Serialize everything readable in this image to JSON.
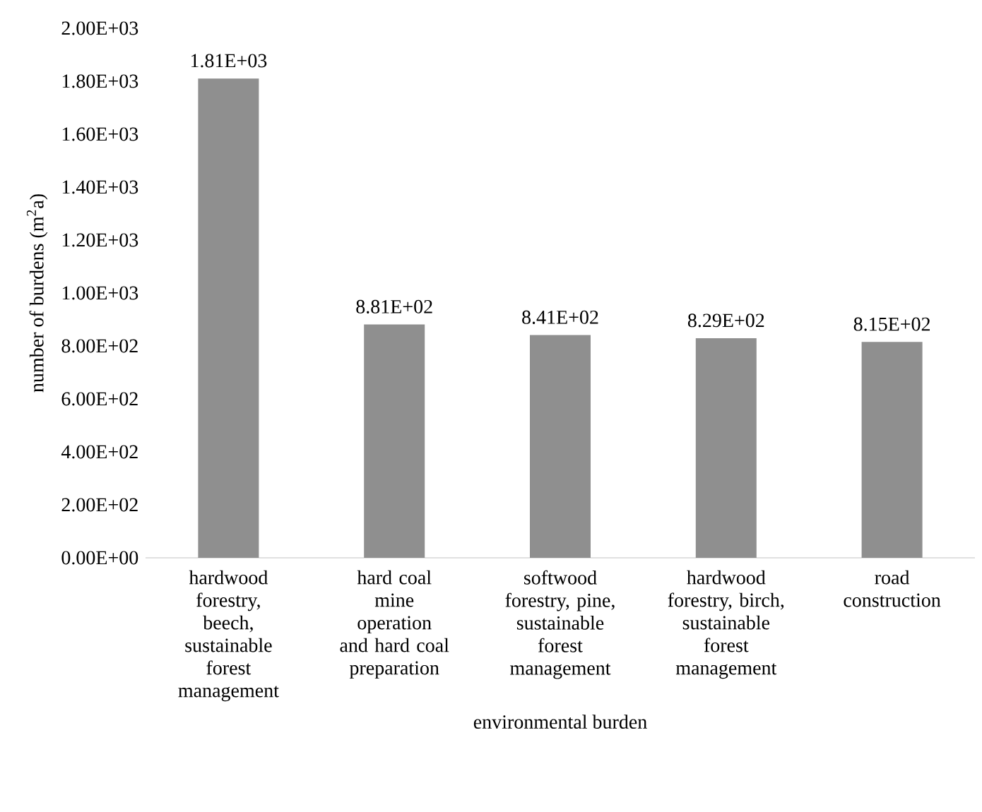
{
  "chart_data": {
    "type": "bar",
    "xlabel": "environmental burden",
    "ylabel": "number of  burdens (m$^{2}$a)",
    "categories": [
      "hardwood forestry, beech, sustainable forest management",
      "hard coal mine operation and hard coal preparation",
      "softwood forestry, pine, sustainable forest management",
      "hardwood forestry, birch, sustainable forest management",
      "road construction"
    ],
    "values": [
      1810,
      881,
      841,
      829,
      815
    ],
    "value_labels": [
      "1.81E+03",
      "8.81E+02",
      "8.41E+02",
      "8.29E+02",
      "8.15E+02"
    ],
    "color": "#8f8f8f",
    "ylim": [
      0,
      2000
    ],
    "yticks": [
      {
        "value": 0,
        "label": "0.00E+00"
      },
      {
        "value": 200,
        "label": "2.00E+02"
      },
      {
        "value": 400,
        "label": "4.00E+02"
      },
      {
        "value": 600,
        "label": "6.00E+02"
      },
      {
        "value": 800,
        "label": "8.00E+02"
      },
      {
        "value": 1000,
        "label": "1.00E+03"
      },
      {
        "value": 1200,
        "label": "1.20E+03"
      },
      {
        "value": 1400,
        "label": "1.40E+03"
      },
      {
        "value": 1600,
        "label": "1.60E+03"
      },
      {
        "value": 1800,
        "label": "1.80E+03"
      },
      {
        "value": 2000,
        "label": "2.00E+03"
      }
    ],
    "grid": false
  }
}
